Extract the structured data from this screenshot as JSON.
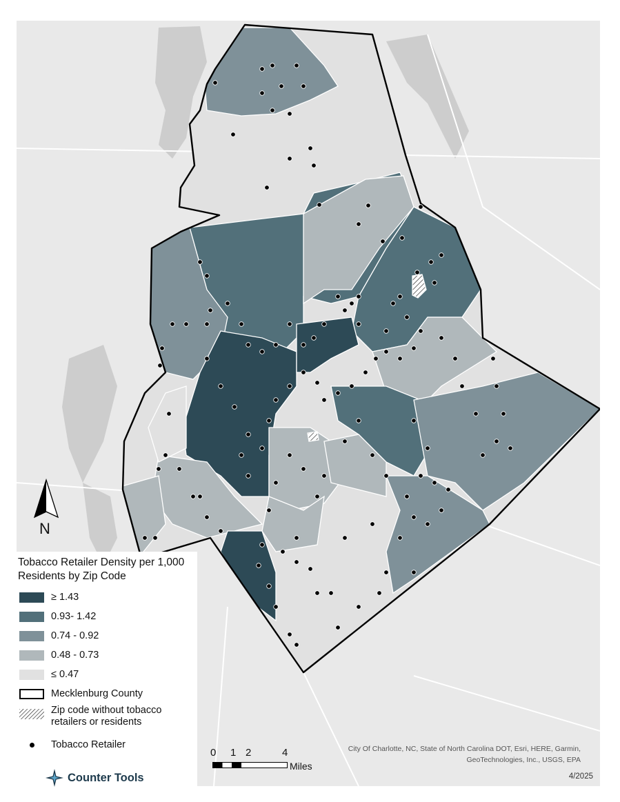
{
  "map": {
    "colors": {
      "background": "#e9e9e9",
      "roads": "#ffffff",
      "water": "#c9c9c9",
      "boundary": "#000000",
      "retailer": "#000000"
    }
  },
  "legend": {
    "title": "Tobacco Retailer Density per 1,000 Residents by Zip Code",
    "classes": [
      {
        "label": "≥ 1.43",
        "color": "#2d4a56"
      },
      {
        "label": "0.93- 1.42",
        "color": "#52707a"
      },
      {
        "label": "0.74 - 0.92",
        "color": "#7f9199"
      },
      {
        "label": "0.48 - 0.73",
        "color": "#b0b8bb"
      },
      {
        "label": "≤ 0.47",
        "color": "#e1e1e1"
      }
    ],
    "county_label": "Mecklenburg County",
    "hatch_label": "Zip code without tobacco retailers or residents",
    "retailer_label": "Tobacco Retailer"
  },
  "north_arrow": {
    "label": "N"
  },
  "scale_bar": {
    "ticks": [
      "0",
      "1",
      "2",
      "4"
    ],
    "unit": "Miles"
  },
  "brand": {
    "name": "Counter Tools",
    "icon": "compass-star-icon"
  },
  "credits": "City Of Charlotte, NC, State of North Carolina DOT, Esri, HERE, Garmin, GeoTechnologies, Inc., USGS, EPA",
  "date": "4/2025"
}
